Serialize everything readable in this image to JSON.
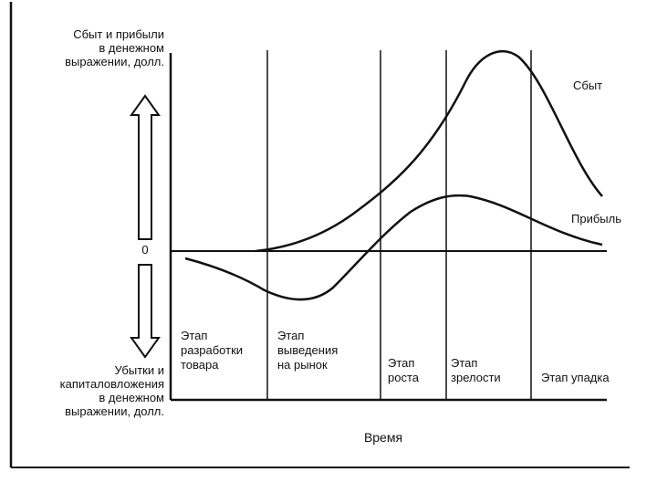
{
  "y_axis": {
    "upper_label": [
      "Сбыт и прибыли",
      "в денежном",
      "выражении, долл."
    ],
    "lower_label": [
      "Убытки и",
      "капиталовложения",
      "в денежном",
      "выражении, долл."
    ],
    "zero_label": "0"
  },
  "x_axis": {
    "label": "Время"
  },
  "curves": {
    "sales": {
      "label": "Сбыт"
    },
    "profit": {
      "label": "Прибыль"
    }
  },
  "stages": [
    {
      "lines": [
        "Этап",
        "разработки",
        "товара"
      ]
    },
    {
      "lines": [
        "Этап",
        "выведения",
        "на рынок"
      ]
    },
    {
      "lines": [
        "Этап",
        "роста"
      ]
    },
    {
      "lines": [
        "Этап",
        "зрелости"
      ]
    },
    {
      "lines": [
        "Этап упадка"
      ]
    }
  ],
  "colors": {
    "ink": "#111111",
    "background": "#ffffff"
  }
}
